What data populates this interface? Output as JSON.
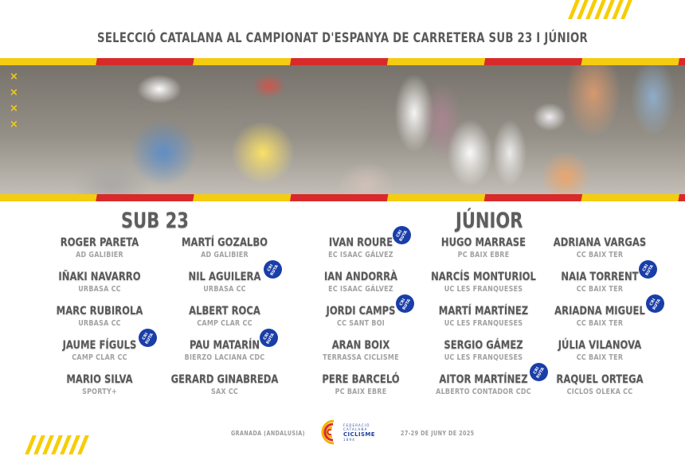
{
  "title": "SELECCIÓ CATALANA AL CAMPIONAT D'ESPANYA DE CARRETERA SUB 23 I JÚNIOR",
  "colors": {
    "accent_yellow": "#f4cc12",
    "accent_red": "#d82a2a",
    "badge_blue": "#1a3ea8",
    "text_dark": "#595959",
    "text_light": "#a2a2a2"
  },
  "badge_label": "CRI RUTA",
  "banner": {
    "image": "cyclists-race-photo",
    "x_marks": [
      "×",
      "×",
      "×",
      "×"
    ]
  },
  "sub23": {
    "heading": "SUB 23",
    "columns": [
      [
        {
          "name": "ROGER PARETA",
          "club": "AD GALIBIER",
          "badge": false
        },
        {
          "name": "IÑAKI NAVARRO",
          "club": "URBASA CC",
          "badge": false
        },
        {
          "name": "MARC RUBIROLA",
          "club": "URBASA CC",
          "badge": false
        },
        {
          "name": "JAUME FÍGULS",
          "club": "CAMP CLAR CC",
          "badge": true
        },
        {
          "name": "MARIO SILVA",
          "club": "SPORTY+",
          "badge": false
        }
      ],
      [
        {
          "name": "MARTÍ GOZALBO",
          "club": "AD GALIBIER",
          "badge": false
        },
        {
          "name": "NIL AGUILERA",
          "club": "URBASA CC",
          "badge": true
        },
        {
          "name": "ALBERT ROCA",
          "club": "CAMP CLAR CC",
          "badge": false
        },
        {
          "name": "PAU MATARÍN",
          "club": "BIERZO LACIANA CDC",
          "badge": true
        },
        {
          "name": "GERARD GINABREDA",
          "club": "SAX CC",
          "badge": false
        }
      ]
    ]
  },
  "junior": {
    "heading": "JÚNIOR",
    "columns": [
      [
        {
          "name": "IVAN ROURE",
          "club": "EC ISAAC GÁLVEZ",
          "badge": true
        },
        {
          "name": "IAN ANDORRÀ",
          "club": "EC ISAAC GÁLVEZ",
          "badge": false
        },
        {
          "name": "JORDI CAMPS",
          "club": "CC SANT BOI",
          "badge": true
        },
        {
          "name": "ARAN BOIX",
          "club": "TERRASSA CICLISME",
          "badge": false
        },
        {
          "name": "PERE BARCELÓ",
          "club": "PC BAIX EBRE",
          "badge": false
        }
      ],
      [
        {
          "name": "HUGO MARRASE",
          "club": "PC BAIX EBRE",
          "badge": false
        },
        {
          "name": "NARCÍS MONTURIOL",
          "club": "UC LES FRANQUESES",
          "badge": false
        },
        {
          "name": "MARTÍ MARTÍNEZ",
          "club": "UC LES FRANQUESES",
          "badge": false
        },
        {
          "name": "SERGIO GÁMEZ",
          "club": "UC LES FRANQUESES",
          "badge": false
        },
        {
          "name": "AITOR MARTÍNEZ",
          "club": "ALBERTO CONTADOR CDC",
          "badge": true
        }
      ],
      [
        {
          "name": "ADRIANA VARGAS",
          "club": "CC BAIX TER",
          "badge": false
        },
        {
          "name": "NAIA TORRENT",
          "club": "CC BAIX TER",
          "badge": true
        },
        {
          "name": "ARIADNA MIGUEL",
          "club": "CC BAIX TER",
          "badge": true
        },
        {
          "name": "JÚLIA VILANOVA",
          "club": "CC BAIX TER",
          "badge": false
        },
        {
          "name": "RAQUEL ORTEGA",
          "club": "CICLOS OLEKA CC",
          "badge": false
        }
      ]
    ]
  },
  "footer": {
    "location": "GRANADA (ANDALUSIA)",
    "dates": "27-29 DE JUNY DE 2025",
    "logo": {
      "line1": "FEDERACIÓ",
      "line2": "CATALANA",
      "line3": "CICLISME",
      "line4": "1894"
    }
  }
}
